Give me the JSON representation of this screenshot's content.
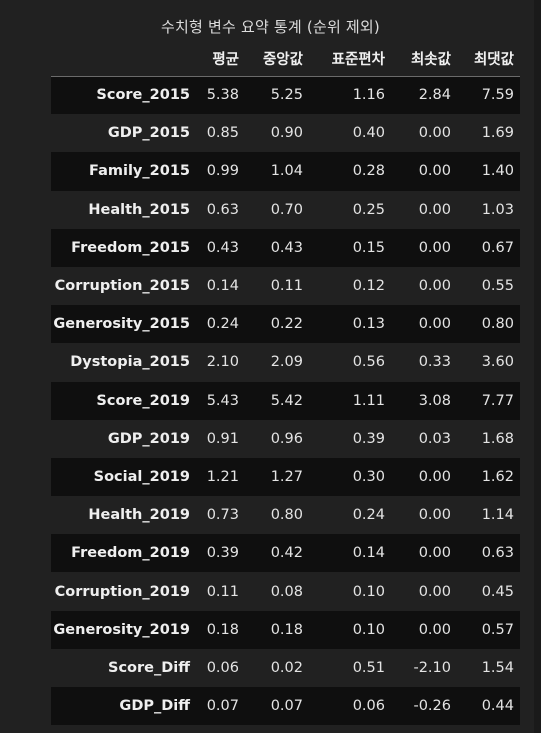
{
  "caption": "수치형 변수 요약 통계 (순위 제외)",
  "columns": [
    "평균",
    "중앙값",
    "표준편차",
    "최솟값",
    "최댓값"
  ],
  "rows": [
    {
      "name": "Score_2015",
      "values": [
        "5.38",
        "5.25",
        "1.16",
        "2.84",
        "7.59"
      ]
    },
    {
      "name": "GDP_2015",
      "values": [
        "0.85",
        "0.90",
        "0.40",
        "0.00",
        "1.69"
      ]
    },
    {
      "name": "Family_2015",
      "values": [
        "0.99",
        "1.04",
        "0.28",
        "0.00",
        "1.40"
      ]
    },
    {
      "name": "Health_2015",
      "values": [
        "0.63",
        "0.70",
        "0.25",
        "0.00",
        "1.03"
      ]
    },
    {
      "name": "Freedom_2015",
      "values": [
        "0.43",
        "0.43",
        "0.15",
        "0.00",
        "0.67"
      ]
    },
    {
      "name": "Corruption_2015",
      "values": [
        "0.14",
        "0.11",
        "0.12",
        "0.00",
        "0.55"
      ]
    },
    {
      "name": "Generosity_2015",
      "values": [
        "0.24",
        "0.22",
        "0.13",
        "0.00",
        "0.80"
      ]
    },
    {
      "name": "Dystopia_2015",
      "values": [
        "2.10",
        "2.09",
        "0.56",
        "0.33",
        "3.60"
      ]
    },
    {
      "name": "Score_2019",
      "values": [
        "5.43",
        "5.42",
        "1.11",
        "3.08",
        "7.77"
      ]
    },
    {
      "name": "GDP_2019",
      "values": [
        "0.91",
        "0.96",
        "0.39",
        "0.03",
        "1.68"
      ]
    },
    {
      "name": "Social_2019",
      "values": [
        "1.21",
        "1.27",
        "0.30",
        "0.00",
        "1.62"
      ]
    },
    {
      "name": "Health_2019",
      "values": [
        "0.73",
        "0.80",
        "0.24",
        "0.00",
        "1.14"
      ]
    },
    {
      "name": "Freedom_2019",
      "values": [
        "0.39",
        "0.42",
        "0.14",
        "0.00",
        "0.63"
      ]
    },
    {
      "name": "Corruption_2019",
      "values": [
        "0.11",
        "0.08",
        "0.10",
        "0.00",
        "0.45"
      ]
    },
    {
      "name": "Generosity_2019",
      "values": [
        "0.18",
        "0.18",
        "0.10",
        "0.00",
        "0.57"
      ]
    },
    {
      "name": "Score_Diff",
      "values": [
        "0.06",
        "0.02",
        "0.51",
        "-2.10",
        "1.54"
      ]
    },
    {
      "name": "GDP_Diff",
      "values": [
        "0.07",
        "0.07",
        "0.06",
        "-0.26",
        "0.44"
      ]
    }
  ]
}
